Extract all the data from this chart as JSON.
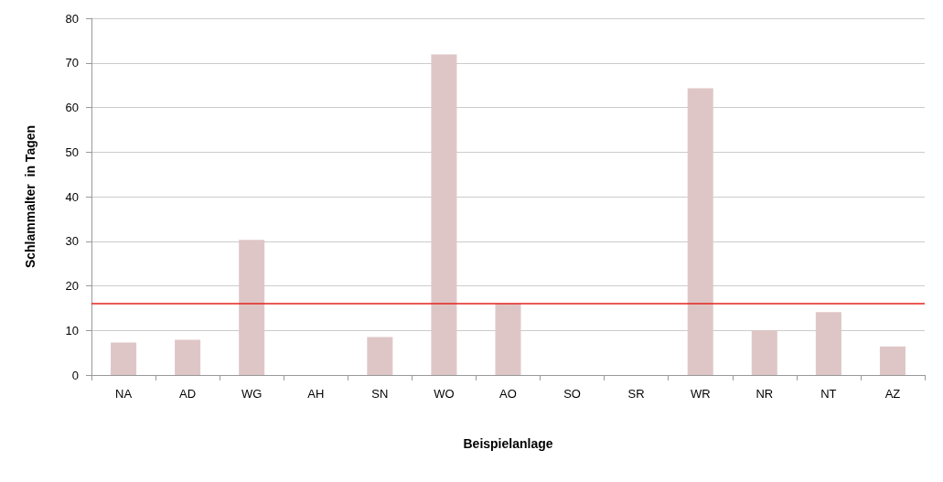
{
  "chart_data": {
    "type": "bar",
    "xlabel": "Beispielanlage",
    "ylabel": "Schlammalter  in Tagen",
    "categories": [
      "NA",
      "AD",
      "WG",
      "AH",
      "SN",
      "WO",
      "AO",
      "SO",
      "SR",
      "WR",
      "NR",
      "NT",
      "AZ"
    ],
    "values": [
      7.3,
      7.9,
      30.3,
      null,
      8.5,
      71.9,
      16,
      null,
      null,
      64.3,
      10,
      14.1,
      6.4
    ],
    "color": "#dfc6c6",
    "ylim": [
      0,
      80
    ],
    "yticks": [
      0,
      10,
      20,
      30,
      40,
      50,
      60,
      70,
      80
    ],
    "grid": "y",
    "ref_lines": [
      {
        "axis": "y",
        "value": 16,
        "color": "#e3231c"
      }
    ]
  }
}
